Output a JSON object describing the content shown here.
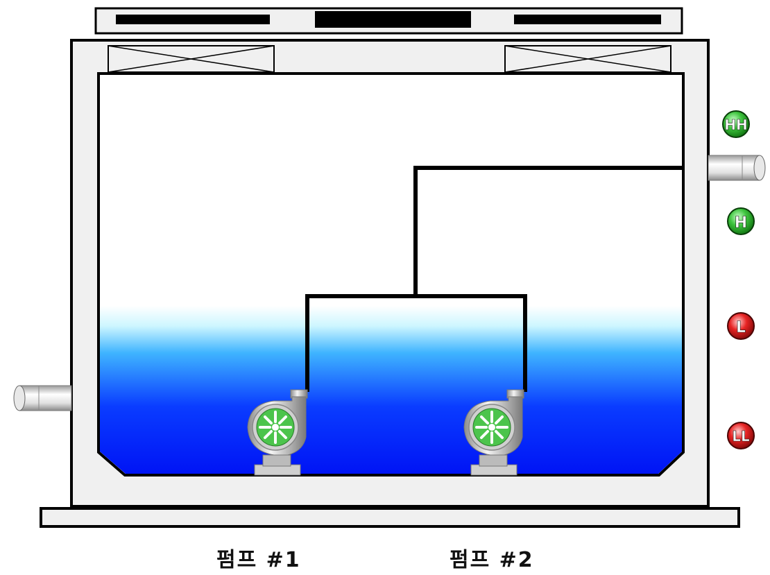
{
  "pumps": [
    {
      "id": "pump1",
      "label": "펌프 #1",
      "running": true
    },
    {
      "id": "pump2",
      "label": "펌프 #2",
      "running": true
    }
  ],
  "level_indicators": [
    {
      "id": "HH",
      "label": "HH",
      "state": "off",
      "color": "#2eb82e"
    },
    {
      "id": "H",
      "label": "H",
      "state": "off",
      "color": "#2eb82e"
    },
    {
      "id": "L",
      "label": "L",
      "state": "alarm",
      "color": "#e01b1b"
    },
    {
      "id": "LL",
      "label": "LL",
      "state": "alarm",
      "color": "#e01b1b"
    }
  ],
  "tank": {
    "water_level_fraction": 0.42,
    "water_color_top": "#ffffff",
    "water_color_bottom": "#0018ff"
  },
  "colors": {
    "frame": "#f0f0f0",
    "outline": "#000000",
    "pump_impeller": "#4cc44c",
    "pump_body": "#d8d8d8"
  }
}
